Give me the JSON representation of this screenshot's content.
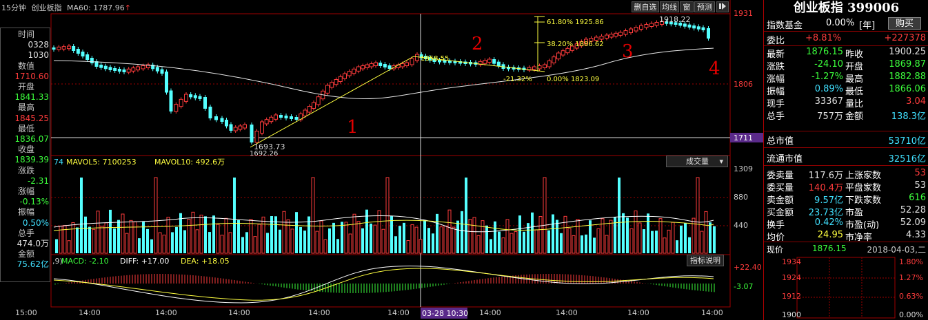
{
  "toolbar": {
    "period": "15分钟",
    "name": "创业板指",
    "ma_label": "MA60: 1787.96",
    "up_arrow": "↑",
    "buttons": [
      "删自选",
      "均线",
      "窗",
      "预测"
    ],
    "right_icon": "arrow-right-icon"
  },
  "left_panel": {
    "items": [
      {
        "label": "时间",
        "value": "",
        "color": "wht"
      },
      {
        "label": "",
        "value": "0328",
        "color": "wht"
      },
      {
        "label": "",
        "value": "1030",
        "color": "wht"
      },
      {
        "label": "数值",
        "value": "",
        "color": "wht"
      },
      {
        "label": "",
        "value": "1710.60",
        "color": "red"
      },
      {
        "label": "开盘",
        "value": "",
        "color": "wht"
      },
      {
        "label": "",
        "value": "1841.33",
        "color": "grn"
      },
      {
        "label": "最高",
        "value": "",
        "color": "wht"
      },
      {
        "label": "",
        "value": "1845.25",
        "color": "red"
      },
      {
        "label": "最低",
        "value": "",
        "color": "wht"
      },
      {
        "label": "",
        "value": "1836.07",
        "color": "grn"
      },
      {
        "label": "收盘",
        "value": "",
        "color": "wht"
      },
      {
        "label": "",
        "value": "1839.39",
        "color": "grn"
      },
      {
        "label": "涨跌",
        "value": "",
        "color": "wht"
      },
      {
        "label": "",
        "value": "-2.31",
        "color": "grn"
      },
      {
        "label": "涨幅",
        "value": "",
        "color": "wht"
      },
      {
        "label": "",
        "value": "-0.13%",
        "color": "grn"
      },
      {
        "label": "振幅",
        "value": "",
        "color": "wht"
      },
      {
        "label": "",
        "value": "0.50%",
        "color": "cyn"
      },
      {
        "label": "总手",
        "value": "",
        "color": "wht"
      },
      {
        "label": "",
        "value": "474.0万",
        "color": "wht"
      },
      {
        "label": "金额",
        "value": "",
        "color": "wht"
      },
      {
        "label": "",
        "value": "75.62亿",
        "color": "cyn"
      }
    ]
  },
  "main_chart": {
    "y_axis_labels": [
      "1931",
      "1806",
      "1711"
    ],
    "cursor_value": "1711",
    "annotations": {
      "low_1": "1693.73",
      "low_2": "1692.26",
      "peak": "1858.55",
      "fib_1": "61.80%  1925.86",
      "fib_2": "38.20%  1886.62",
      "fib_3": "-21.32%",
      "fib_4": "0.00%  1823.09",
      "high": "1918.22",
      "wave_1": "1",
      "wave_2": "2",
      "wave_3": "3",
      "wave_4": "4"
    }
  },
  "volume_panel": {
    "legend_start": "74",
    "mavol5": "MAVOL5: 7100253",
    "mavol10": "MAVOL10: 492.6万",
    "dropdown": "成交量",
    "y_axis_labels": [
      "1309",
      "880",
      "440"
    ]
  },
  "macd_panel": {
    "legend_start": ",9)",
    "macd": "MACD: -2.10",
    "diff": "DIFF: +17.00",
    "dea": "DEA: +18.05",
    "help_button": "指标说明",
    "y_axis_labels": [
      "+22.40",
      "-3.07"
    ]
  },
  "time_axis": {
    "labels": [
      "15:00",
      "14:00",
      "14:00",
      "14:00",
      "14:00",
      "14:00",
      "14:00",
      "14:00",
      "14:00",
      "14:00"
    ],
    "cursor_time": "03-28 10:30"
  },
  "right_panel": {
    "title": "创业板指 399006",
    "fund_label": "指数基金",
    "fund_value": "0.00%",
    "fund_unit": "[年]",
    "buy_button": "购买",
    "weibi_label": "委比",
    "weibi_value": "+8.81%",
    "weibi_diff": "+227378",
    "rows": [
      {
        "l1": "最新",
        "v1": "1876.15",
        "c1": "grn",
        "l2": "昨收",
        "v2": "1900.25",
        "c2": "wht"
      },
      {
        "l1": "涨跌",
        "v1": "-24.10",
        "c1": "grn",
        "l2": "开盘",
        "v2": "1869.87",
        "c2": "grn"
      },
      {
        "l1": "涨幅",
        "v1": "-1.27%",
        "c1": "grn",
        "l2": "最高",
        "v2": "1882.88",
        "c2": "grn"
      },
      {
        "l1": "振幅",
        "v1": "0.89%",
        "c1": "cyn",
        "l2": "最低",
        "v2": "1866.06",
        "c2": "grn"
      },
      {
        "l1": "现手",
        "v1": "33367",
        "c1": "wht",
        "l2": "量比",
        "v2": "3.04",
        "c2": "red"
      },
      {
        "l1": "总手",
        "v1": "757万",
        "c1": "wht",
        "l2": "金额",
        "v2": "138.3亿",
        "c2": "cyn"
      }
    ],
    "mktcap_label": "总市值",
    "mktcap_value": "53710亿",
    "float_label": "流通市值",
    "float_value": "32516亿",
    "rows2": [
      {
        "l1": "委卖量",
        "v1": "117.6万",
        "c1": "wht",
        "l2": "上涨家数",
        "v2": "53",
        "c2": "red"
      },
      {
        "l1": "委买量",
        "v1": "140.4万",
        "c1": "red",
        "l2": "平盘家数",
        "v2": "53",
        "c2": "wht"
      },
      {
        "l1": "卖金额",
        "v1": "9.57亿",
        "c1": "cyn",
        "l2": "下跌家数",
        "v2": "616",
        "c2": "grn"
      },
      {
        "l1": "买金额",
        "v1": "23.73亿",
        "c1": "cyn",
        "l2": "市盈",
        "v2": "52.28",
        "c2": "wht"
      },
      {
        "l1": "换手",
        "v1": "0.42%",
        "c1": "cyn",
        "l2": "市盈(动)",
        "v2": "52.09",
        "c2": "wht"
      },
      {
        "l1": "均价",
        "v1": "24.95",
        "c1": "yel",
        "l2": "市净率",
        "v2": "4.33",
        "c2": "wht"
      }
    ],
    "now_label": "现价",
    "now_value": "1876.15",
    "now_date": "2018-04-03,二",
    "mini_left": [
      "1934",
      "1924",
      "1912",
      "1900"
    ],
    "mini_right": [
      "1.80%",
      "1.27%",
      "0.63%",
      "0.00%"
    ]
  },
  "colors": {
    "up": "#ff3c3c",
    "down": "#54ffff",
    "ma": "#e8e8e8",
    "fib": "#ffff40",
    "frame": "#a00000"
  }
}
